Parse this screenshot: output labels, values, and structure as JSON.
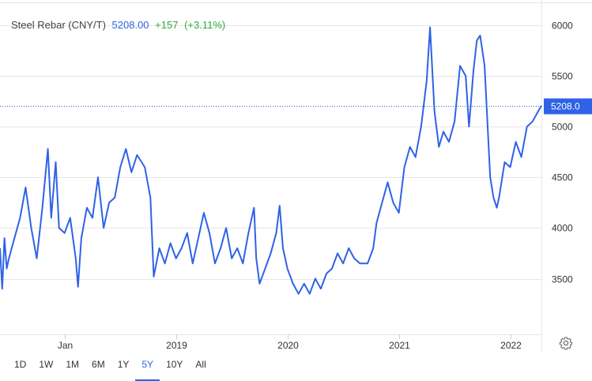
{
  "header": {
    "name": "Steel Rebar (CNY/T)",
    "price": "5208.00",
    "change": "+157",
    "change_pct": "(+3.11%)"
  },
  "last_price_label": "5208.0",
  "colors": {
    "line": "#2f62e6",
    "change": "#2cad3a",
    "grid": "#e6e6e6"
  },
  "range_buttons": [
    "1D",
    "1W",
    "1M",
    "6M",
    "1Y",
    "5Y",
    "10Y",
    "All"
  ],
  "active_range": "5Y",
  "settings_icon": "gear-icon",
  "chart_data": {
    "type": "line",
    "title": "Steel Rebar (CNY/T)",
    "x_ticks": [
      "Jan",
      "2019",
      "2020",
      "2021",
      "2022"
    ],
    "y_ticks": [
      3500,
      4000,
      4500,
      5000,
      5500,
      6000
    ],
    "ylim": [
      2950,
      6250
    ],
    "xlim": [
      2017.42,
      2022.28
    ],
    "grid": true,
    "last_value": 5208.0,
    "series": [
      {
        "values": [
          [
            2017.42,
            3800
          ],
          [
            2017.44,
            3400
          ],
          [
            2017.46,
            3900
          ],
          [
            2017.48,
            3600
          ],
          [
            2017.5,
            3700
          ],
          [
            2017.55,
            3900
          ],
          [
            2017.6,
            4100
          ],
          [
            2017.65,
            4400
          ],
          [
            2017.7,
            4000
          ],
          [
            2017.75,
            3700
          ],
          [
            2017.8,
            4200
          ],
          [
            2017.85,
            4780
          ],
          [
            2017.88,
            4100
          ],
          [
            2017.92,
            4650
          ],
          [
            2017.95,
            4000
          ],
          [
            2018.0,
            3950
          ],
          [
            2018.05,
            4100
          ],
          [
            2018.1,
            3700
          ],
          [
            2018.12,
            3420
          ],
          [
            2018.15,
            3900
          ],
          [
            2018.2,
            4200
          ],
          [
            2018.25,
            4100
          ],
          [
            2018.3,
            4500
          ],
          [
            2018.35,
            4000
          ],
          [
            2018.4,
            4250
          ],
          [
            2018.45,
            4300
          ],
          [
            2018.5,
            4600
          ],
          [
            2018.55,
            4780
          ],
          [
            2018.6,
            4550
          ],
          [
            2018.65,
            4720
          ],
          [
            2018.72,
            4600
          ],
          [
            2018.77,
            4300
          ],
          [
            2018.8,
            3520
          ],
          [
            2018.85,
            3800
          ],
          [
            2018.9,
            3650
          ],
          [
            2018.95,
            3850
          ],
          [
            2019.0,
            3700
          ],
          [
            2019.05,
            3800
          ],
          [
            2019.1,
            3950
          ],
          [
            2019.15,
            3650
          ],
          [
            2019.2,
            3900
          ],
          [
            2019.25,
            4150
          ],
          [
            2019.3,
            3950
          ],
          [
            2019.35,
            3650
          ],
          [
            2019.4,
            3800
          ],
          [
            2019.45,
            4000
          ],
          [
            2019.5,
            3700
          ],
          [
            2019.55,
            3800
          ],
          [
            2019.6,
            3650
          ],
          [
            2019.65,
            3950
          ],
          [
            2019.7,
            4200
          ],
          [
            2019.72,
            3700
          ],
          [
            2019.75,
            3450
          ],
          [
            2019.8,
            3600
          ],
          [
            2019.85,
            3750
          ],
          [
            2019.9,
            3950
          ],
          [
            2019.93,
            4220
          ],
          [
            2019.96,
            3800
          ],
          [
            2020.0,
            3600
          ],
          [
            2020.05,
            3450
          ],
          [
            2020.1,
            3350
          ],
          [
            2020.15,
            3450
          ],
          [
            2020.2,
            3350
          ],
          [
            2020.25,
            3500
          ],
          [
            2020.3,
            3400
          ],
          [
            2020.35,
            3550
          ],
          [
            2020.4,
            3600
          ],
          [
            2020.45,
            3750
          ],
          [
            2020.5,
            3650
          ],
          [
            2020.55,
            3800
          ],
          [
            2020.6,
            3700
          ],
          [
            2020.65,
            3650
          ],
          [
            2020.72,
            3650
          ],
          [
            2020.77,
            3800
          ],
          [
            2020.8,
            4050
          ],
          [
            2020.85,
            4250
          ],
          [
            2020.9,
            4450
          ],
          [
            2020.95,
            4250
          ],
          [
            2021.0,
            4150
          ],
          [
            2021.05,
            4600
          ],
          [
            2021.1,
            4800
          ],
          [
            2021.15,
            4700
          ],
          [
            2021.2,
            5000
          ],
          [
            2021.25,
            5450
          ],
          [
            2021.28,
            5980
          ],
          [
            2021.32,
            5150
          ],
          [
            2021.36,
            4800
          ],
          [
            2021.4,
            4950
          ],
          [
            2021.45,
            4850
          ],
          [
            2021.5,
            5050
          ],
          [
            2021.55,
            5600
          ],
          [
            2021.6,
            5500
          ],
          [
            2021.63,
            5000
          ],
          [
            2021.67,
            5550
          ],
          [
            2021.7,
            5850
          ],
          [
            2021.73,
            5900
          ],
          [
            2021.77,
            5600
          ],
          [
            2021.82,
            4500
          ],
          [
            2021.85,
            4300
          ],
          [
            2021.88,
            4200
          ],
          [
            2021.9,
            4300
          ],
          [
            2021.95,
            4650
          ],
          [
            2022.0,
            4600
          ],
          [
            2022.05,
            4850
          ],
          [
            2022.1,
            4700
          ],
          [
            2022.15,
            5000
          ],
          [
            2022.2,
            5050
          ],
          [
            2022.25,
            5150
          ],
          [
            2022.28,
            5208
          ]
        ]
      }
    ]
  }
}
